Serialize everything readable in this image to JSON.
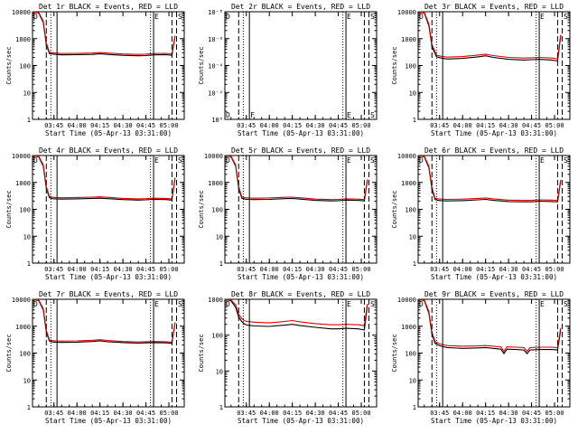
{
  "figure": {
    "background": "#ffffff",
    "events_color": "#000000",
    "lld_color": "#e00000"
  },
  "chart_data": [
    {
      "type": "line",
      "title": "Det 1r BLACK = Events, RED = LLD",
      "xlabel": "Start Time (05-Apr-13 03:31:00)",
      "ylabel": "Counts/sec",
      "yscale": "log",
      "ylim": [
        1,
        10000
      ],
      "y_tick_labels": [
        "1",
        "10",
        "100",
        "1000",
        "10000"
      ],
      "xlim": [
        "03:31",
        "05:10"
      ],
      "x_tick_labels": [
        "03:45",
        "04:00",
        "04:15",
        "04:30",
        "04:45",
        "05:00"
      ],
      "markers": {
        "D": "03:31",
        "F": "03:47",
        "E": "04:50",
        "S": "05:03"
      },
      "series": [
        {
          "name": "Events",
          "x": [
            "03:31",
            "03:35",
            "03:38",
            "03:40",
            "03:42",
            "03:44",
            "03:46",
            "03:50",
            "04:00",
            "04:10",
            "04:15",
            "04:20",
            "04:30",
            "04:40",
            "04:45",
            "04:50",
            "04:58",
            "05:02",
            "05:04"
          ],
          "y": [
            10000,
            9000,
            4000,
            600,
            280,
            270,
            260,
            250,
            255,
            260,
            275,
            260,
            240,
            230,
            235,
            250,
            255,
            240,
            1200
          ]
        },
        {
          "name": "LLD",
          "x": [
            "03:31",
            "03:35",
            "03:38",
            "03:40",
            "03:42",
            "03:44",
            "03:46",
            "03:50",
            "04:00",
            "04:10",
            "04:15",
            "04:20",
            "04:30",
            "04:40",
            "04:45",
            "04:50",
            "04:58",
            "05:02",
            "05:04"
          ],
          "y": [
            10000,
            9500,
            4500,
            700,
            310,
            300,
            290,
            280,
            285,
            290,
            305,
            290,
            270,
            260,
            265,
            280,
            285,
            270,
            1300
          ]
        }
      ]
    },
    {
      "type": "line",
      "title": "Det 2r BLACK = Events, RED = LLD",
      "xlabel": "Start Time (05-Apr-13 03:31:00)",
      "ylabel": "Counts/sec",
      "yscale": "log",
      "ylim": [
        1,
        1e-08
      ],
      "y_tick_labels": [
        "10⁰",
        "10⁻²",
        "10⁻⁴",
        "10⁻⁶",
        "10⁻⁸"
      ],
      "xlim": [
        "03:31",
        "05:10"
      ],
      "x_tick_labels": [
        "03:45",
        "04:00",
        "04:15",
        "04:30",
        "04:45",
        "05:00"
      ],
      "markers": {
        "D": "03:31",
        "F": "03:47",
        "E": "04:50",
        "S": "05:03"
      },
      "series": []
    },
    {
      "type": "line",
      "title": "Det 3r BLACK = Events, RED = LLD",
      "xlabel": "Start Time (05-Apr-13 03:31:00)",
      "ylabel": "Counts/sec",
      "yscale": "log",
      "ylim": [
        1,
        10000
      ],
      "y_tick_labels": [
        "1",
        "10",
        "100",
        "1000",
        "10000"
      ],
      "xlim": [
        "03:31",
        "05:10"
      ],
      "x_tick_labels": [
        "03:45",
        "04:00",
        "04:15",
        "04:30",
        "04:45",
        "05:00"
      ],
      "markers": {
        "D": "03:31",
        "F": "03:47",
        "E": "04:50",
        "S": "05:03"
      },
      "series": [
        {
          "name": "Events",
          "x": [
            "03:31",
            "03:35",
            "03:38",
            "03:40",
            "03:43",
            "03:46",
            "03:50",
            "04:00",
            "04:10",
            "04:15",
            "04:20",
            "04:30",
            "04:40",
            "04:45",
            "04:50",
            "04:58",
            "05:02",
            "05:04"
          ],
          "y": [
            10000,
            9000,
            3000,
            500,
            210,
            190,
            175,
            185,
            210,
            230,
            200,
            170,
            160,
            165,
            170,
            160,
            150,
            1200
          ]
        },
        {
          "name": "LLD",
          "x": [
            "03:31",
            "03:35",
            "03:38",
            "03:40",
            "03:43",
            "03:46",
            "03:50",
            "04:00",
            "04:10",
            "04:15",
            "04:20",
            "04:30",
            "04:40",
            "04:45",
            "04:50",
            "04:58",
            "05:02",
            "05:04"
          ],
          "y": [
            10000,
            9500,
            3500,
            600,
            240,
            220,
            205,
            215,
            245,
            265,
            235,
            200,
            190,
            195,
            200,
            190,
            180,
            1400
          ]
        }
      ]
    },
    {
      "type": "line",
      "title": "Det 4r BLACK = Events, RED = LLD",
      "xlabel": "Start Time (05-Apr-13 03:31:00)",
      "ylabel": "Counts/sec",
      "yscale": "log",
      "ylim": [
        1,
        10000
      ],
      "y_tick_labels": [
        "1",
        "10",
        "100",
        "1000",
        "10000"
      ],
      "xlim": [
        "03:31",
        "05:10"
      ],
      "x_tick_labels": [
        "03:45",
        "04:00",
        "04:15",
        "04:30",
        "04:45",
        "05:00"
      ],
      "markers": {
        "D": "03:31",
        "F": "03:47",
        "E": "04:50",
        "S": "05:03"
      },
      "series": [
        {
          "name": "Events",
          "x": [
            "03:31",
            "03:35",
            "03:38",
            "03:40",
            "03:42",
            "03:44",
            "03:46",
            "03:50",
            "04:00",
            "04:10",
            "04:15",
            "04:20",
            "04:30",
            "04:40",
            "04:45",
            "04:50",
            "04:58",
            "05:02",
            "05:04"
          ],
          "y": [
            10000,
            9000,
            4000,
            600,
            270,
            250,
            245,
            240,
            245,
            255,
            260,
            250,
            230,
            220,
            225,
            235,
            230,
            220,
            1400
          ]
        },
        {
          "name": "LLD",
          "x": [
            "03:31",
            "03:35",
            "03:38",
            "03:40",
            "03:42",
            "03:44",
            "03:46",
            "03:50",
            "04:00",
            "04:10",
            "04:15",
            "04:20",
            "04:30",
            "04:40",
            "04:45",
            "04:50",
            "04:58",
            "05:02",
            "05:04"
          ],
          "y": [
            10000,
            9500,
            4500,
            700,
            300,
            280,
            275,
            270,
            275,
            285,
            290,
            280,
            255,
            245,
            250,
            260,
            255,
            245,
            1500
          ]
        }
      ]
    },
    {
      "type": "line",
      "title": "Det 5r BLACK = Events, RED = LLD",
      "xlabel": "Start Time (05-Apr-13 03:31:00)",
      "ylabel": "Counts/sec",
      "yscale": "log",
      "ylim": [
        1,
        10000
      ],
      "y_tick_labels": [
        "1",
        "10",
        "100",
        "1000",
        "10000"
      ],
      "xlim": [
        "03:31",
        "05:10"
      ],
      "x_tick_labels": [
        "03:45",
        "04:00",
        "04:15",
        "04:30",
        "04:45",
        "05:00"
      ],
      "markers": {
        "D": "03:31",
        "F": "03:47",
        "E": "04:50",
        "S": "05:03"
      },
      "series": [
        {
          "name": "Events",
          "x": [
            "03:31",
            "03:35",
            "03:38",
            "03:40",
            "03:42",
            "03:44",
            "03:46",
            "03:50",
            "04:00",
            "04:10",
            "04:15",
            "04:20",
            "04:30",
            "04:40",
            "04:45",
            "04:50",
            "04:58",
            "05:02",
            "05:04"
          ],
          "y": [
            10000,
            9000,
            4000,
            600,
            260,
            240,
            235,
            230,
            235,
            250,
            255,
            240,
            215,
            205,
            210,
            220,
            215,
            205,
            1200
          ]
        },
        {
          "name": "LLD",
          "x": [
            "03:31",
            "03:35",
            "03:38",
            "03:40",
            "03:42",
            "03:44",
            "03:46",
            "03:50",
            "04:00",
            "04:10",
            "04:15",
            "04:20",
            "04:30",
            "04:40",
            "04:45",
            "04:50",
            "04:58",
            "05:02",
            "05:04"
          ],
          "y": [
            10000,
            9500,
            4500,
            700,
            290,
            270,
            265,
            260,
            265,
            280,
            285,
            270,
            240,
            230,
            235,
            245,
            240,
            230,
            1300
          ]
        }
      ]
    },
    {
      "type": "line",
      "title": "Det 6r BLACK = Events, RED = LLD",
      "xlabel": "Start Time (05-Apr-13 03:31:00)",
      "ylabel": "Counts/sec",
      "yscale": "log",
      "ylim": [
        1,
        10000
      ],
      "y_tick_labels": [
        "1",
        "10",
        "100",
        "1000",
        "10000"
      ],
      "xlim": [
        "03:31",
        "05:10"
      ],
      "x_tick_labels": [
        "03:45",
        "04:00",
        "04:15",
        "04:30",
        "04:45",
        "05:00"
      ],
      "markers": {
        "D": "03:31",
        "F": "03:47",
        "E": "04:50",
        "S": "05:03"
      },
      "series": [
        {
          "name": "Events",
          "x": [
            "03:31",
            "03:35",
            "03:38",
            "03:40",
            "03:42",
            "03:44",
            "03:46",
            "03:50",
            "04:00",
            "04:10",
            "04:15",
            "04:20",
            "04:30",
            "04:40",
            "04:45",
            "04:50",
            "04:58",
            "05:02",
            "05:04"
          ],
          "y": [
            10000,
            9000,
            3500,
            550,
            230,
            215,
            210,
            205,
            210,
            225,
            235,
            215,
            195,
            190,
            190,
            200,
            195,
            190,
            1100
          ]
        },
        {
          "name": "LLD",
          "x": [
            "03:31",
            "03:35",
            "03:38",
            "03:40",
            "03:42",
            "03:44",
            "03:46",
            "03:50",
            "04:00",
            "04:10",
            "04:15",
            "04:20",
            "04:30",
            "04:40",
            "04:45",
            "04:50",
            "04:58",
            "05:02",
            "05:04"
          ],
          "y": [
            10000,
            9500,
            4000,
            650,
            260,
            245,
            240,
            235,
            240,
            255,
            265,
            245,
            220,
            215,
            215,
            225,
            220,
            215,
            1250
          ]
        }
      ]
    },
    {
      "type": "line",
      "title": "Det 7r BLACK = Events, RED = LLD",
      "xlabel": "Start Time (05-Apr-13 03:31:00)",
      "ylabel": "Counts/sec",
      "yscale": "log",
      "ylim": [
        1,
        10000
      ],
      "y_tick_labels": [
        "1",
        "10",
        "100",
        "1000",
        "10000"
      ],
      "xlim": [
        "03:31",
        "05:10"
      ],
      "x_tick_labels": [
        "03:45",
        "04:00",
        "04:15",
        "04:30",
        "04:45",
        "05:00"
      ],
      "markers": {
        "D": "03:31",
        "F": "03:47",
        "E": "04:50",
        "S": "05:03"
      },
      "series": [
        {
          "name": "Events",
          "x": [
            "03:31",
            "03:35",
            "03:38",
            "03:40",
            "03:42",
            "03:44",
            "03:46",
            "03:50",
            "04:00",
            "04:10",
            "04:15",
            "04:20",
            "04:30",
            "04:40",
            "04:45",
            "04:50",
            "04:58",
            "05:02",
            "05:04"
          ],
          "y": [
            10000,
            9000,
            4000,
            600,
            280,
            260,
            255,
            250,
            255,
            270,
            285,
            265,
            245,
            235,
            240,
            245,
            240,
            230,
            1300
          ]
        },
        {
          "name": "LLD",
          "x": [
            "03:31",
            "03:35",
            "03:38",
            "03:40",
            "03:42",
            "03:44",
            "03:46",
            "03:50",
            "04:00",
            "04:10",
            "04:15",
            "04:20",
            "04:30",
            "04:40",
            "04:45",
            "04:50",
            "04:58",
            "05:02",
            "05:04"
          ],
          "y": [
            10000,
            9500,
            4500,
            700,
            310,
            290,
            285,
            280,
            285,
            300,
            315,
            295,
            270,
            260,
            265,
            270,
            265,
            255,
            1400
          ]
        }
      ]
    },
    {
      "type": "line",
      "title": "Det 8r BLACK = Events, RED = LLD",
      "xlabel": "Start Time (05-Apr-13 03:31:00)",
      "ylabel": "Counts/sec",
      "yscale": "log",
      "ylim": [
        1,
        1000
      ],
      "y_tick_labels": [
        "1",
        "10",
        "100",
        "1000"
      ],
      "xlim": [
        "03:31",
        "05:10"
      ],
      "x_tick_labels": [
        "03:45",
        "04:00",
        "04:15",
        "04:30",
        "04:45",
        "05:00"
      ],
      "markers": {
        "D": "03:31",
        "F": "03:47",
        "E": "04:50",
        "S": "05:03"
      },
      "series": [
        {
          "name": "Events",
          "x": [
            "03:31",
            "03:35",
            "03:38",
            "03:40",
            "03:42",
            "03:44",
            "03:46",
            "03:50",
            "04:00",
            "04:10",
            "04:15",
            "04:20",
            "04:30",
            "04:40",
            "04:45",
            "04:50",
            "04:58",
            "05:02",
            "05:04"
          ],
          "y": [
            1000,
            900,
            600,
            320,
            240,
            200,
            190,
            180,
            175,
            190,
            200,
            185,
            165,
            150,
            150,
            155,
            150,
            140,
            650
          ]
        },
        {
          "name": "LLD",
          "x": [
            "03:31",
            "03:35",
            "03:38",
            "03:40",
            "03:42",
            "03:44",
            "03:46",
            "03:50",
            "04:00",
            "04:10",
            "04:15",
            "04:20",
            "04:30",
            "04:40",
            "04:45",
            "04:50",
            "04:58",
            "05:02",
            "05:04"
          ],
          "y": [
            1000,
            950,
            700,
            380,
            290,
            250,
            240,
            230,
            220,
            240,
            255,
            235,
            210,
            195,
            195,
            200,
            195,
            185,
            750
          ]
        }
      ]
    },
    {
      "type": "line",
      "title": "Det 9r BLACK = Events, RED = LLD",
      "xlabel": "Start Time (05-Apr-13 03:31:00)",
      "ylabel": "Counts/sec",
      "yscale": "log",
      "ylim": [
        1,
        10000
      ],
      "y_tick_labels": [
        "1",
        "10",
        "100",
        "1000",
        "10000"
      ],
      "xlim": [
        "03:31",
        "05:10"
      ],
      "x_tick_labels": [
        "03:45",
        "04:00",
        "04:15",
        "04:30",
        "04:45",
        "05:00"
      ],
      "markers": {
        "D": "03:31",
        "F": "03:47",
        "E": "04:50",
        "S": "05:03"
      },
      "series": [
        {
          "name": "Events",
          "x": [
            "03:31",
            "03:35",
            "03:38",
            "03:40",
            "03:42",
            "03:44",
            "03:46",
            "03:50",
            "04:00",
            "04:10",
            "04:15",
            "04:20",
            "04:25",
            "04:27",
            "04:29",
            "04:35",
            "04:40",
            "04:42",
            "04:44",
            "04:50",
            "04:58",
            "05:02",
            "05:04"
          ],
          "y": [
            10000,
            9000,
            3000,
            500,
            230,
            200,
            180,
            160,
            150,
            155,
            160,
            150,
            140,
            95,
            140,
            135,
            130,
            95,
            130,
            135,
            135,
            130,
            700
          ]
        },
        {
          "name": "LLD",
          "x": [
            "03:31",
            "03:35",
            "03:38",
            "03:40",
            "03:42",
            "03:44",
            "03:46",
            "03:50",
            "04:00",
            "04:10",
            "04:15",
            "04:20",
            "04:25",
            "04:27",
            "04:29",
            "04:35",
            "04:40",
            "04:42",
            "04:44",
            "04:50",
            "04:58",
            "05:02",
            "05:04"
          ],
          "y": [
            10000,
            9500,
            3500,
            600,
            270,
            235,
            210,
            190,
            180,
            185,
            190,
            180,
            170,
            115,
            170,
            165,
            160,
            115,
            160,
            165,
            165,
            160,
            850
          ]
        }
      ]
    }
  ]
}
